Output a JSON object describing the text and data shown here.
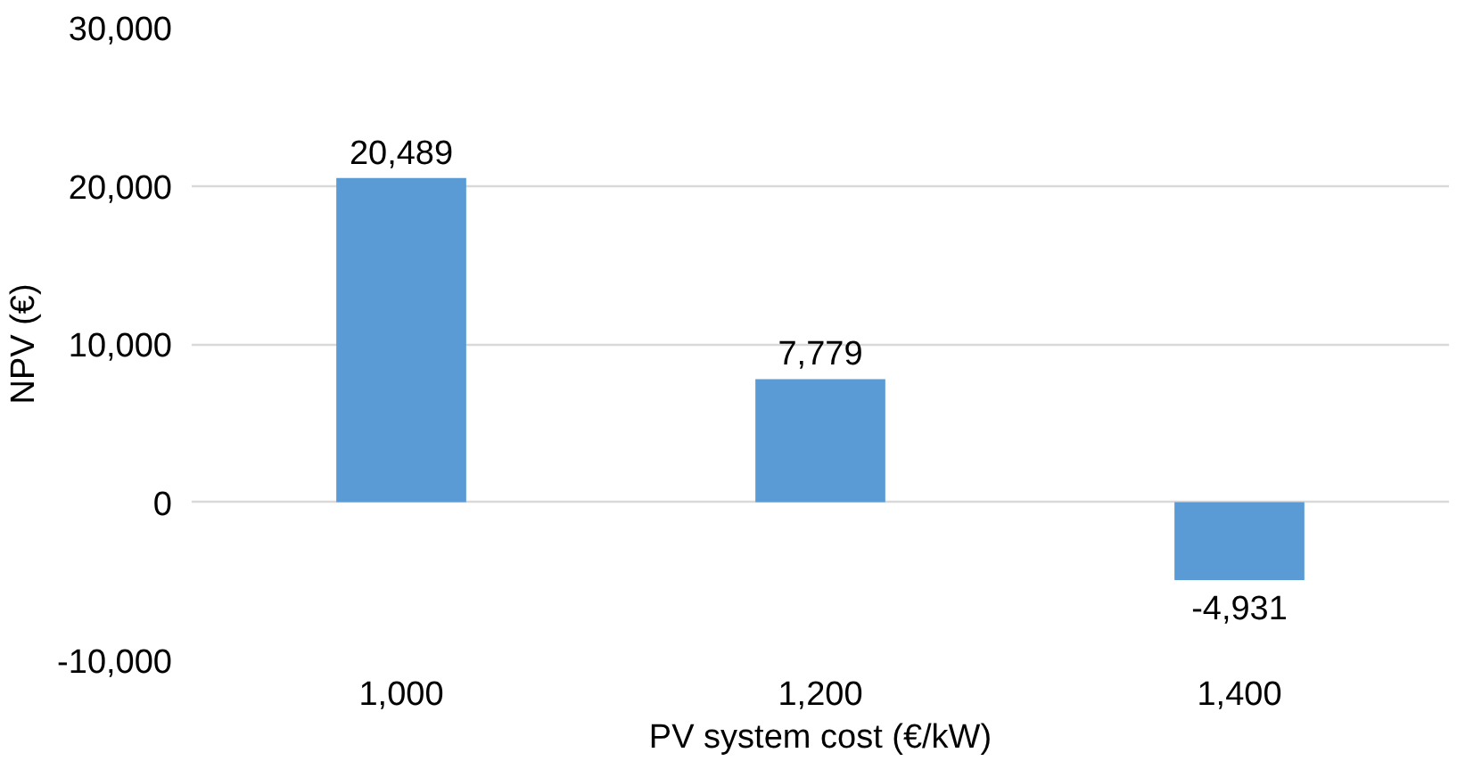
{
  "chart_data": {
    "type": "bar",
    "xlabel": "PV system cost (€/kW)",
    "ylabel": "NPV (€)",
    "categories": [
      "1,000",
      "1,200",
      "1,400"
    ],
    "values": [
      20489,
      7779,
      -4931
    ],
    "value_labels": [
      "20,489",
      "7,779",
      "-4,931"
    ],
    "color": "#5b9bd5",
    "ylim": [
      -10000,
      30000
    ],
    "yticks": [
      {
        "value": -10000,
        "label": "-10,000"
      },
      0,
      {
        "value": 10000,
        "label": "10,000"
      },
      {
        "value": 20000,
        "label": "20,000"
      },
      {
        "value": 30000,
        "label": "30,000"
      }
    ],
    "grid": "y"
  }
}
